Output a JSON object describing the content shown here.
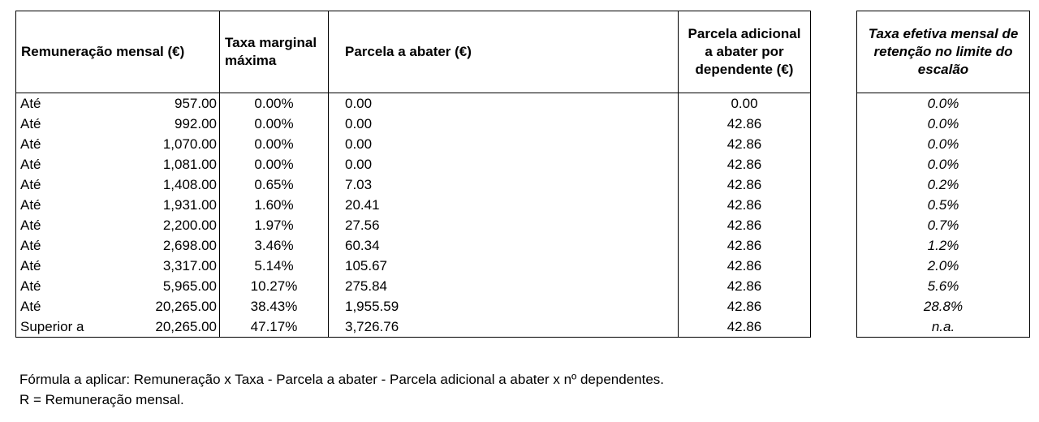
{
  "headers": {
    "remuneracao": "Remuneração mensal (€)",
    "taxa": "Taxa marginal máxima",
    "parcela": "Parcela a abater (€)",
    "dependente": "Parcela adicional a abater por dependente (€)",
    "efetiva": "Taxa efetiva mensal de retenção no limite do escalão"
  },
  "rows": [
    {
      "label": "Até",
      "value": "957.00",
      "taxa": "0.00%",
      "parcela": "0.00",
      "dependente": "0.00",
      "efetiva": "0.0%"
    },
    {
      "label": "Até",
      "value": "992.00",
      "taxa": "0.00%",
      "parcela": "0.00",
      "dependente": "42.86",
      "efetiva": "0.0%"
    },
    {
      "label": "Até",
      "value": "1,070.00",
      "taxa": "0.00%",
      "parcela": "0.00",
      "dependente": "42.86",
      "efetiva": "0.0%"
    },
    {
      "label": "Até",
      "value": "1,081.00",
      "taxa": "0.00%",
      "parcela": "0.00",
      "dependente": "42.86",
      "efetiva": "0.0%"
    },
    {
      "label": "Até",
      "value": "1,408.00",
      "taxa": "0.65%",
      "parcela": "7.03",
      "dependente": "42.86",
      "efetiva": "0.2%"
    },
    {
      "label": "Até",
      "value": "1,931.00",
      "taxa": "1.60%",
      "parcela": "20.41",
      "dependente": "42.86",
      "efetiva": "0.5%"
    },
    {
      "label": "Até",
      "value": "2,200.00",
      "taxa": "1.97%",
      "parcela": "27.56",
      "dependente": "42.86",
      "efetiva": "0.7%"
    },
    {
      "label": "Até",
      "value": "2,698.00",
      "taxa": "3.46%",
      "parcela": "60.34",
      "dependente": "42.86",
      "efetiva": "1.2%"
    },
    {
      "label": "Até",
      "value": "3,317.00",
      "taxa": "5.14%",
      "parcela": "105.67",
      "dependente": "42.86",
      "efetiva": "2.0%"
    },
    {
      "label": "Até",
      "value": "5,965.00",
      "taxa": "10.27%",
      "parcela": "275.84",
      "dependente": "42.86",
      "efetiva": "5.6%"
    },
    {
      "label": "Até",
      "value": "20,265.00",
      "taxa": "38.43%",
      "parcela": "1,955.59",
      "dependente": "42.86",
      "efetiva": "28.8%"
    },
    {
      "label": "Superior a",
      "value": "20,265.00",
      "taxa": "47.17%",
      "parcela": "3,726.76",
      "dependente": "42.86",
      "efetiva": "n.a."
    }
  ],
  "notes": {
    "formula": "Fórmula a aplicar: Remuneração x Taxa - Parcela a abater - Parcela adicional a abater x nº dependentes.",
    "legend": "R = Remuneração mensal."
  }
}
